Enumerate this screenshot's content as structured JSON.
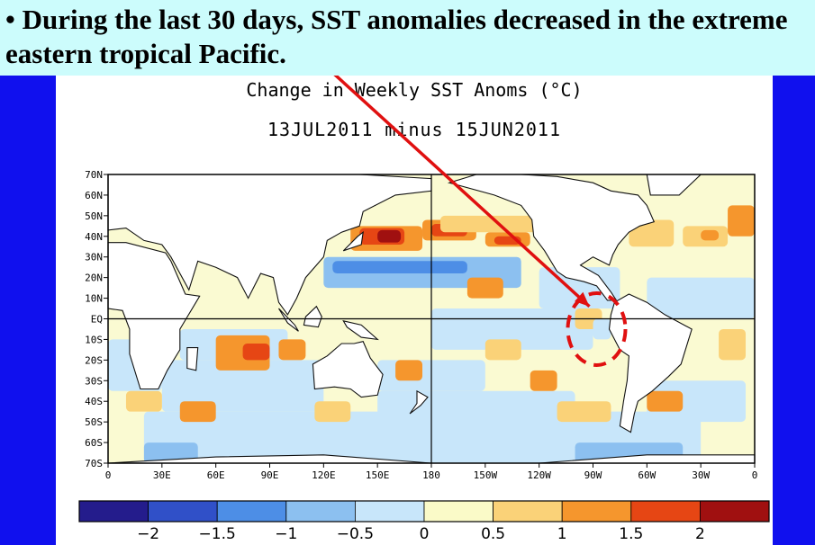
{
  "slide": {
    "header_text": "• During the last 30 days, SST anomalies decreased in the extreme eastern tropical Pacific.",
    "header_bg": "#ccfcfc",
    "side_bar_color": "#1010ee"
  },
  "map": {
    "title": "Change in Weekly SST Anoms (°C)",
    "subtitle": "13JUL2011 minus 15JUN2011",
    "lat_labels": [
      "70N",
      "60N",
      "50N",
      "40N",
      "30N",
      "20N",
      "10N",
      "EQ",
      "10S",
      "20S",
      "30S",
      "40S",
      "50S",
      "60S",
      "70S"
    ],
    "lon_labels": [
      "0",
      "30E",
      "60E",
      "90E",
      "120E",
      "150E",
      "180",
      "150W",
      "120W",
      "90W",
      "60W",
      "30W",
      "0"
    ],
    "lat_range": [
      -70,
      70
    ],
    "lon_range": [
      0,
      360
    ],
    "reference_lines": [
      "EQ",
      "180"
    ],
    "annotation": {
      "type": "red arrow and dashed circle",
      "color": "#e01010",
      "target_region": "extreme eastern tropical Pacific"
    }
  },
  "colorbar": {
    "tick_labels": [
      "−2",
      "−1.5",
      "−1",
      "−0.5",
      "0",
      "0.5",
      "1",
      "1.5",
      "2"
    ],
    "colors": [
      "#241c8c",
      "#3050c8",
      "#4d8ee6",
      "#8cc0f0",
      "#c8e6fa",
      "#fafac8",
      "#fad278",
      "#f5962d",
      "#e64614",
      "#a01010"
    ]
  }
}
